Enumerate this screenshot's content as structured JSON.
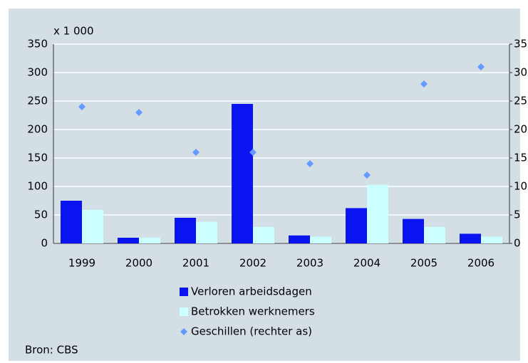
{
  "chart_data": {
    "type": "bar",
    "unit_label": "x 1 000",
    "source": "Bron: CBS",
    "categories": [
      "1999",
      "2000",
      "2001",
      "2002",
      "2003",
      "2004",
      "2005",
      "2006"
    ],
    "series": [
      {
        "name": "Verloren arbeidsdagen",
        "color": "#0a14f0",
        "values": [
          75,
          10,
          45,
          245,
          14,
          62,
          43,
          17
        ]
      },
      {
        "name": "Betrokken werknemers",
        "color": "#ccffff",
        "values": [
          59,
          10,
          38,
          29,
          12,
          103,
          29,
          12
        ]
      },
      {
        "name": "Geschillen (rechter as)",
        "color": "#6699ff",
        "type": "scatter",
        "axis": "y2",
        "values": [
          24,
          23,
          16,
          16,
          14,
          12,
          28,
          31
        ]
      }
    ],
    "ylim": [
      0,
      350
    ],
    "yticks": [
      0,
      50,
      100,
      150,
      200,
      250,
      300,
      350
    ],
    "y2lim": [
      0,
      35
    ],
    "y2ticks": [
      0,
      5,
      10,
      15,
      20,
      25,
      30,
      35
    ],
    "grid": true
  }
}
